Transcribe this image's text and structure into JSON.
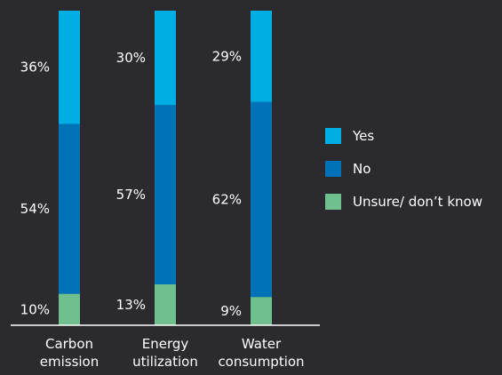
{
  "colors": {
    "background": "#2b2a2f",
    "yes": "#00aee6",
    "no": "#0072b8",
    "unsure": "#6fc08e",
    "axis": "#ffffff",
    "text": "#ffffff"
  },
  "chart_data": {
    "type": "bar",
    "stacked": true,
    "percent_stacked": true,
    "categories": [
      [
        "Carbon",
        "emission"
      ],
      [
        "Energy",
        "utilization"
      ],
      [
        "Water",
        "consumption"
      ]
    ],
    "series": [
      {
        "name": "Unsure/ don’t know",
        "color": "#6fc08e",
        "values": [
          10,
          13,
          9
        ],
        "labels": [
          "10%",
          "13%",
          "9%"
        ]
      },
      {
        "name": "No",
        "color": "#0072b8",
        "values": [
          54,
          57,
          62
        ],
        "labels": [
          "54%",
          "57%",
          "62%"
        ]
      },
      {
        "name": "Yes",
        "color": "#00aee6",
        "values": [
          36,
          30,
          29
        ],
        "labels": [
          "36%",
          "30%",
          "29%"
        ]
      }
    ],
    "ylim": [
      0,
      100
    ],
    "grid": false,
    "legend_position": "right"
  },
  "legend": {
    "items": [
      {
        "label": "Yes",
        "color": "#00aee6"
      },
      {
        "label": "No",
        "color": "#0072b8"
      },
      {
        "label": "Unsure/ don’t know",
        "color": "#6fc08e"
      }
    ]
  }
}
